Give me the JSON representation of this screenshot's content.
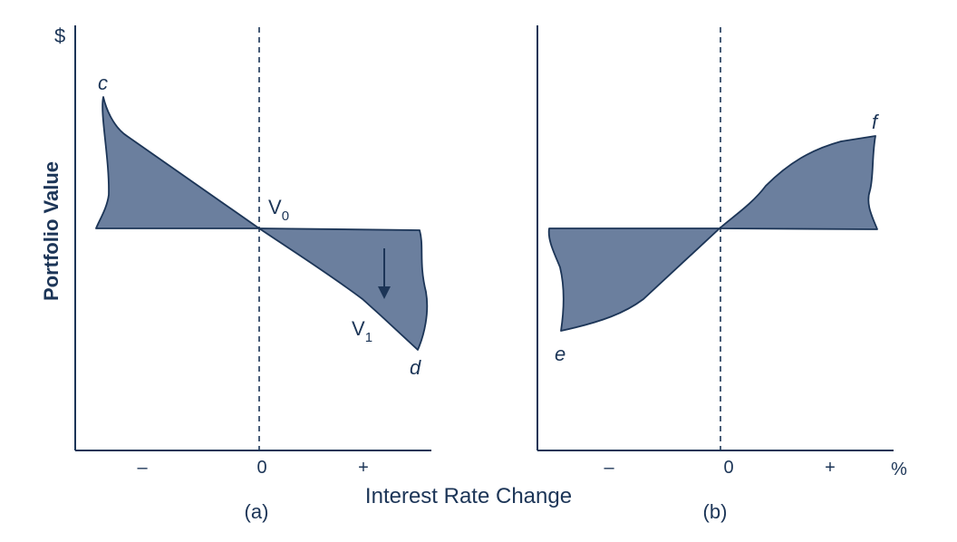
{
  "colors": {
    "fill": "#6b7f9e",
    "ink": "#1c3557"
  },
  "y_axis": {
    "symbol": "$",
    "label": "Portfolio Value"
  },
  "x_axis": {
    "label": "Interest Rate Change",
    "percent": "%"
  },
  "panel_a": {
    "caption": "(a)",
    "ticks": {
      "minus": "–",
      "zero": "0",
      "plus": "+"
    },
    "labels": {
      "c": "c",
      "d": "d",
      "v0": "V",
      "v0_sub": "0",
      "v1": "V",
      "v1_sub": "1"
    }
  },
  "panel_b": {
    "caption": "(b)",
    "ticks": {
      "minus": "–",
      "zero": "0",
      "plus": "+"
    },
    "labels": {
      "e": "e",
      "f": "f"
    }
  }
}
